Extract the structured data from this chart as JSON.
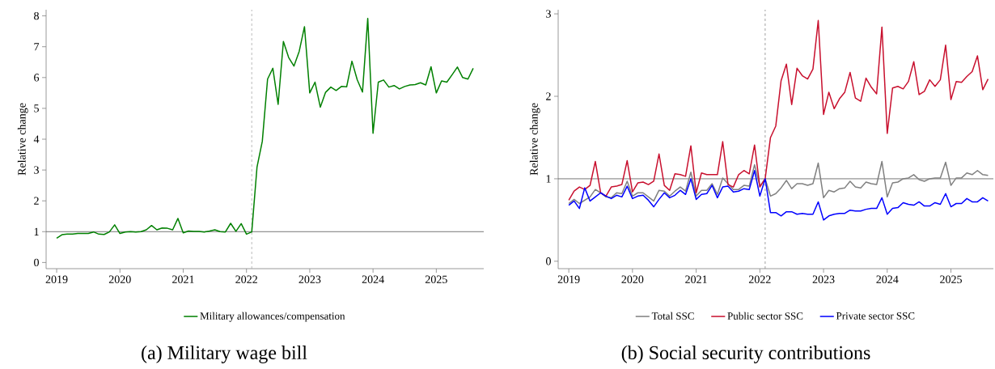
{
  "chart_data": [
    {
      "type": "line",
      "title": "(a) Military wage bill",
      "ylabel": "Relative change",
      "x": [
        "2019-01",
        "2019-02",
        "2019-03",
        "2019-04",
        "2019-05",
        "2019-06",
        "2019-07",
        "2019-08",
        "2019-09",
        "2019-10",
        "2019-11",
        "2019-12",
        "2020-01",
        "2020-02",
        "2020-03",
        "2020-04",
        "2020-05",
        "2020-06",
        "2020-07",
        "2020-08",
        "2020-09",
        "2020-10",
        "2020-11",
        "2020-12",
        "2021-01",
        "2021-02",
        "2021-03",
        "2021-04",
        "2021-05",
        "2021-06",
        "2021-07",
        "2021-08",
        "2021-09",
        "2021-10",
        "2021-11",
        "2021-12",
        "2022-01",
        "2022-02",
        "2022-03",
        "2022-04",
        "2022-05",
        "2022-06",
        "2022-07",
        "2022-08",
        "2022-09",
        "2022-10",
        "2022-11",
        "2022-12",
        "2023-01",
        "2023-02",
        "2023-03",
        "2023-04",
        "2023-05",
        "2023-06",
        "2023-07",
        "2023-08",
        "2023-09",
        "2023-10",
        "2023-11",
        "2023-12",
        "2024-01",
        "2024-02",
        "2024-03",
        "2024-04",
        "2024-05",
        "2024-06",
        "2024-07",
        "2024-08",
        "2024-09",
        "2024-10",
        "2024-11",
        "2024-12",
        "2025-01",
        "2025-02",
        "2025-03",
        "2025-04",
        "2025-05",
        "2025-06",
        "2025-07",
        "2025-08"
      ],
      "series": [
        {
          "name": "Military allowances/compensation",
          "color": "#008000",
          "values": [
            0.79,
            0.9,
            0.92,
            0.92,
            0.94,
            0.94,
            0.94,
            0.99,
            0.92,
            0.91,
            0.99,
            1.22,
            0.94,
            0.99,
            1.0,
            0.99,
            1.0,
            1.06,
            1.2,
            1.06,
            1.12,
            1.11,
            1.06,
            1.43,
            0.96,
            1.02,
            1.01,
            1.01,
            0.99,
            1.02,
            1.06,
            1.0,
            0.99,
            1.27,
            1.01,
            1.26,
            0.92,
            0.99,
            3.1,
            3.93,
            5.95,
            6.3,
            5.13,
            7.17,
            6.65,
            6.37,
            6.85,
            7.65,
            5.5,
            5.85,
            5.04,
            5.52,
            5.69,
            5.58,
            5.71,
            5.7,
            6.53,
            5.93,
            5.53,
            7.92,
            4.19,
            5.85,
            5.92,
            5.69,
            5.74,
            5.63,
            5.71,
            5.76,
            5.77,
            5.83,
            5.76,
            6.35,
            5.5,
            5.89,
            5.85,
            6.09,
            6.34,
            6.0,
            5.95,
            6.3
          ]
        }
      ],
      "xlim": [
        "2018-11",
        "2025-10"
      ],
      "xticks": [
        "2019",
        "2020",
        "2021",
        "2022",
        "2023",
        "2024",
        "2025"
      ],
      "ylim": [
        -0.2,
        8.2
      ],
      "yticks": [
        0,
        1,
        2,
        3,
        4,
        5,
        6,
        7,
        8
      ],
      "ref_lines": [
        {
          "axis": "y",
          "value": 1,
          "color": "#555555",
          "line_style": "solid"
        },
        {
          "axis": "x",
          "value": "2022-02",
          "color": "#aaaaaa",
          "line_style": "dashed"
        }
      ],
      "legend": "bottom"
    },
    {
      "type": "line",
      "title": "(b) Social security contributions",
      "ylabel": "Relative change",
      "x": [
        "2019-01",
        "2019-02",
        "2019-03",
        "2019-04",
        "2019-05",
        "2019-06",
        "2019-07",
        "2019-08",
        "2019-09",
        "2019-10",
        "2019-11",
        "2019-12",
        "2020-01",
        "2020-02",
        "2020-03",
        "2020-04",
        "2020-05",
        "2020-06",
        "2020-07",
        "2020-08",
        "2020-09",
        "2020-10",
        "2020-11",
        "2020-12",
        "2021-01",
        "2021-02",
        "2021-03",
        "2021-04",
        "2021-05",
        "2021-06",
        "2021-07",
        "2021-08",
        "2021-09",
        "2021-10",
        "2021-11",
        "2021-12",
        "2022-01",
        "2022-02",
        "2022-03",
        "2022-04",
        "2022-05",
        "2022-06",
        "2022-07",
        "2022-08",
        "2022-09",
        "2022-10",
        "2022-11",
        "2022-12",
        "2023-01",
        "2023-02",
        "2023-03",
        "2023-04",
        "2023-05",
        "2023-06",
        "2023-07",
        "2023-08",
        "2023-09",
        "2023-10",
        "2023-11",
        "2023-12",
        "2024-01",
        "2024-02",
        "2024-03",
        "2024-04",
        "2024-05",
        "2024-06",
        "2024-07",
        "2024-08",
        "2024-09",
        "2024-10",
        "2024-11",
        "2024-12",
        "2025-01",
        "2025-02",
        "2025-03",
        "2025-04",
        "2025-05",
        "2025-06",
        "2025-07",
        "2025-08"
      ],
      "series": [
        {
          "name": "Total SSC",
          "color": "#808080",
          "values": [
            0.7,
            0.75,
            0.7,
            null,
            0.78,
            0.87,
            0.83,
            0.78,
            0.77,
            0.83,
            0.82,
            0.97,
            0.79,
            0.83,
            0.83,
            0.78,
            0.73,
            0.86,
            0.85,
            0.79,
            0.85,
            0.9,
            0.85,
            1.08,
            0.79,
            0.86,
            0.86,
            0.94,
            0.81,
            1.01,
            0.94,
            0.87,
            0.87,
            0.92,
            0.91,
            1.17,
            0.91,
            1.0,
            0.79,
            0.82,
            0.89,
            0.98,
            0.88,
            0.94,
            0.94,
            0.92,
            0.94,
            1.19,
            0.77,
            0.86,
            0.84,
            0.88,
            0.89,
            0.97,
            0.9,
            0.89,
            0.96,
            0.94,
            0.93,
            1.21,
            0.78,
            0.95,
            0.96,
            1.0,
            1.01,
            1.05,
            0.99,
            0.97,
            1.0,
            1.01,
            1.01,
            1.2,
            0.92,
            1.01,
            1.01,
            1.07,
            1.05,
            1.1,
            1.05,
            1.04
          ]
        },
        {
          "name": "Public sector SSC",
          "color": "#c8102e",
          "values": [
            0.74,
            0.85,
            0.9,
            0.87,
            0.92,
            1.21,
            0.83,
            0.79,
            0.9,
            0.91,
            0.93,
            1.22,
            0.84,
            0.95,
            0.96,
            0.93,
            0.97,
            1.3,
            0.92,
            0.86,
            1.06,
            1.05,
            1.03,
            1.4,
            0.83,
            1.07,
            1.05,
            1.05,
            1.05,
            1.45,
            0.93,
            0.9,
            1.05,
            1.1,
            1.06,
            1.41,
            0.9,
            1.0,
            1.5,
            1.64,
            2.19,
            2.39,
            1.9,
            2.34,
            2.25,
            2.21,
            2.33,
            2.92,
            1.78,
            2.05,
            1.85,
            1.97,
            2.05,
            2.29,
            1.98,
            1.94,
            2.22,
            2.11,
            2.03,
            2.84,
            1.55,
            2.1,
            2.12,
            2.09,
            2.18,
            2.42,
            2.02,
            2.06,
            2.2,
            2.12,
            2.2,
            2.62,
            1.96,
            2.18,
            2.17,
            2.24,
            2.3,
            2.49,
            2.08,
            2.21
          ]
        },
        {
          "name": "Private sector SSC",
          "color": "#0000ff",
          "values": [
            0.68,
            0.73,
            0.64,
            0.89,
            0.73,
            0.78,
            0.83,
            0.79,
            0.76,
            0.8,
            0.78,
            0.91,
            0.76,
            0.79,
            0.8,
            0.74,
            0.66,
            0.75,
            0.83,
            0.77,
            0.8,
            0.86,
            0.81,
            1.0,
            0.75,
            0.81,
            0.82,
            0.92,
            0.77,
            0.9,
            0.91,
            0.84,
            0.85,
            0.88,
            0.87,
            1.1,
            0.79,
            1.0,
            0.59,
            0.59,
            0.55,
            0.6,
            0.6,
            0.57,
            0.58,
            0.57,
            0.57,
            0.72,
            0.5,
            0.55,
            0.57,
            0.58,
            0.58,
            0.62,
            0.61,
            0.61,
            0.63,
            0.64,
            0.64,
            0.77,
            0.57,
            0.64,
            0.65,
            0.71,
            0.69,
            0.68,
            0.72,
            0.67,
            0.67,
            0.71,
            0.69,
            0.82,
            0.66,
            0.7,
            0.7,
            0.76,
            0.72,
            0.72,
            0.77,
            0.73
          ]
        }
      ],
      "xlim": [
        "2018-11",
        "2025-09"
      ],
      "xticks": [
        "2019",
        "2020",
        "2021",
        "2022",
        "2023",
        "2024",
        "2025"
      ],
      "ylim": [
        -0.09,
        3.05
      ],
      "yticks": [
        0,
        1,
        2,
        3
      ],
      "ref_lines": [
        {
          "axis": "y",
          "value": 1,
          "color": "#555555",
          "line_style": "solid"
        },
        {
          "axis": "x",
          "value": "2022-02",
          "color": "#888888",
          "line_style": "dashed"
        }
      ],
      "legend": "bottom"
    }
  ]
}
